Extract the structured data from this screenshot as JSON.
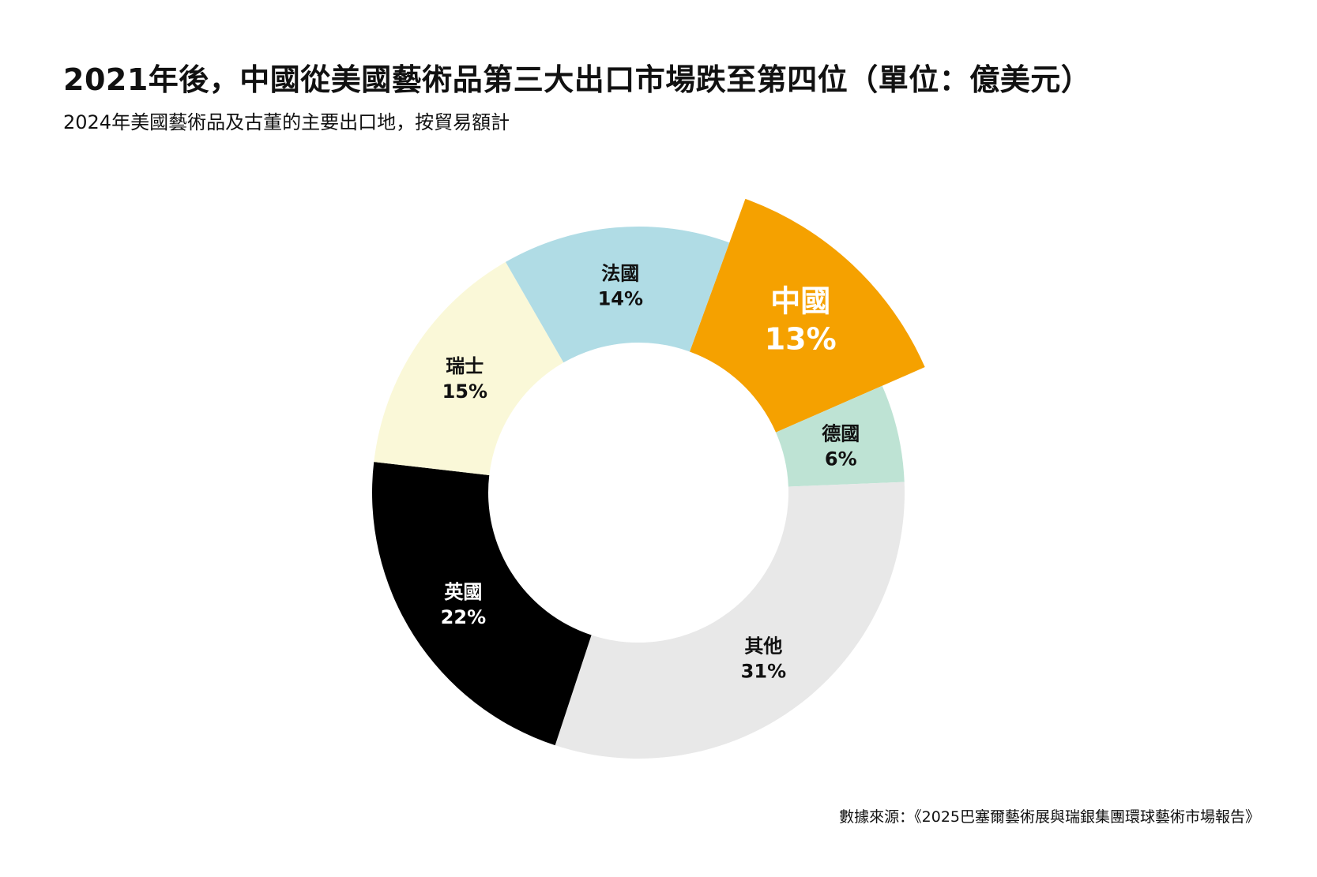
{
  "title": "2021年後，中國從美國藝術品第三大出口市場跌至第四位（單位：億美元）",
  "subtitle": "2024年美國藝術品及古董的主要出口地，按貿易額計",
  "source": "數據來源：《2025巴塞爾藝術展與瑞銀集團環球藝術市場報告》",
  "chart_data": {
    "type": "pie",
    "donut": true,
    "slices": [
      {
        "name": "中國",
        "value": 13,
        "label": "13%",
        "color": "#F5A100",
        "highlight": true,
        "text_color": "#ffffff"
      },
      {
        "name": "德國",
        "value": 6,
        "label": "6%",
        "color": "#BEE3D4",
        "highlight": false,
        "text_color": "#111111"
      },
      {
        "name": "其他",
        "value": 31,
        "label": "31%",
        "color": "#E8E8E8",
        "highlight": false,
        "text_color": "#111111"
      },
      {
        "name": "英國",
        "value": 22,
        "label": "22%",
        "color": "#000000",
        "highlight": false,
        "text_color": "#ffffff"
      },
      {
        "name": "瑞士",
        "value": 15,
        "label": "15%",
        "color": "#FAF8D8",
        "highlight": false,
        "text_color": "#111111"
      },
      {
        "name": "法國",
        "value": 14,
        "label": "14%",
        "color": "#B0DCE5",
        "highlight": false,
        "text_color": "#111111"
      }
    ]
  }
}
